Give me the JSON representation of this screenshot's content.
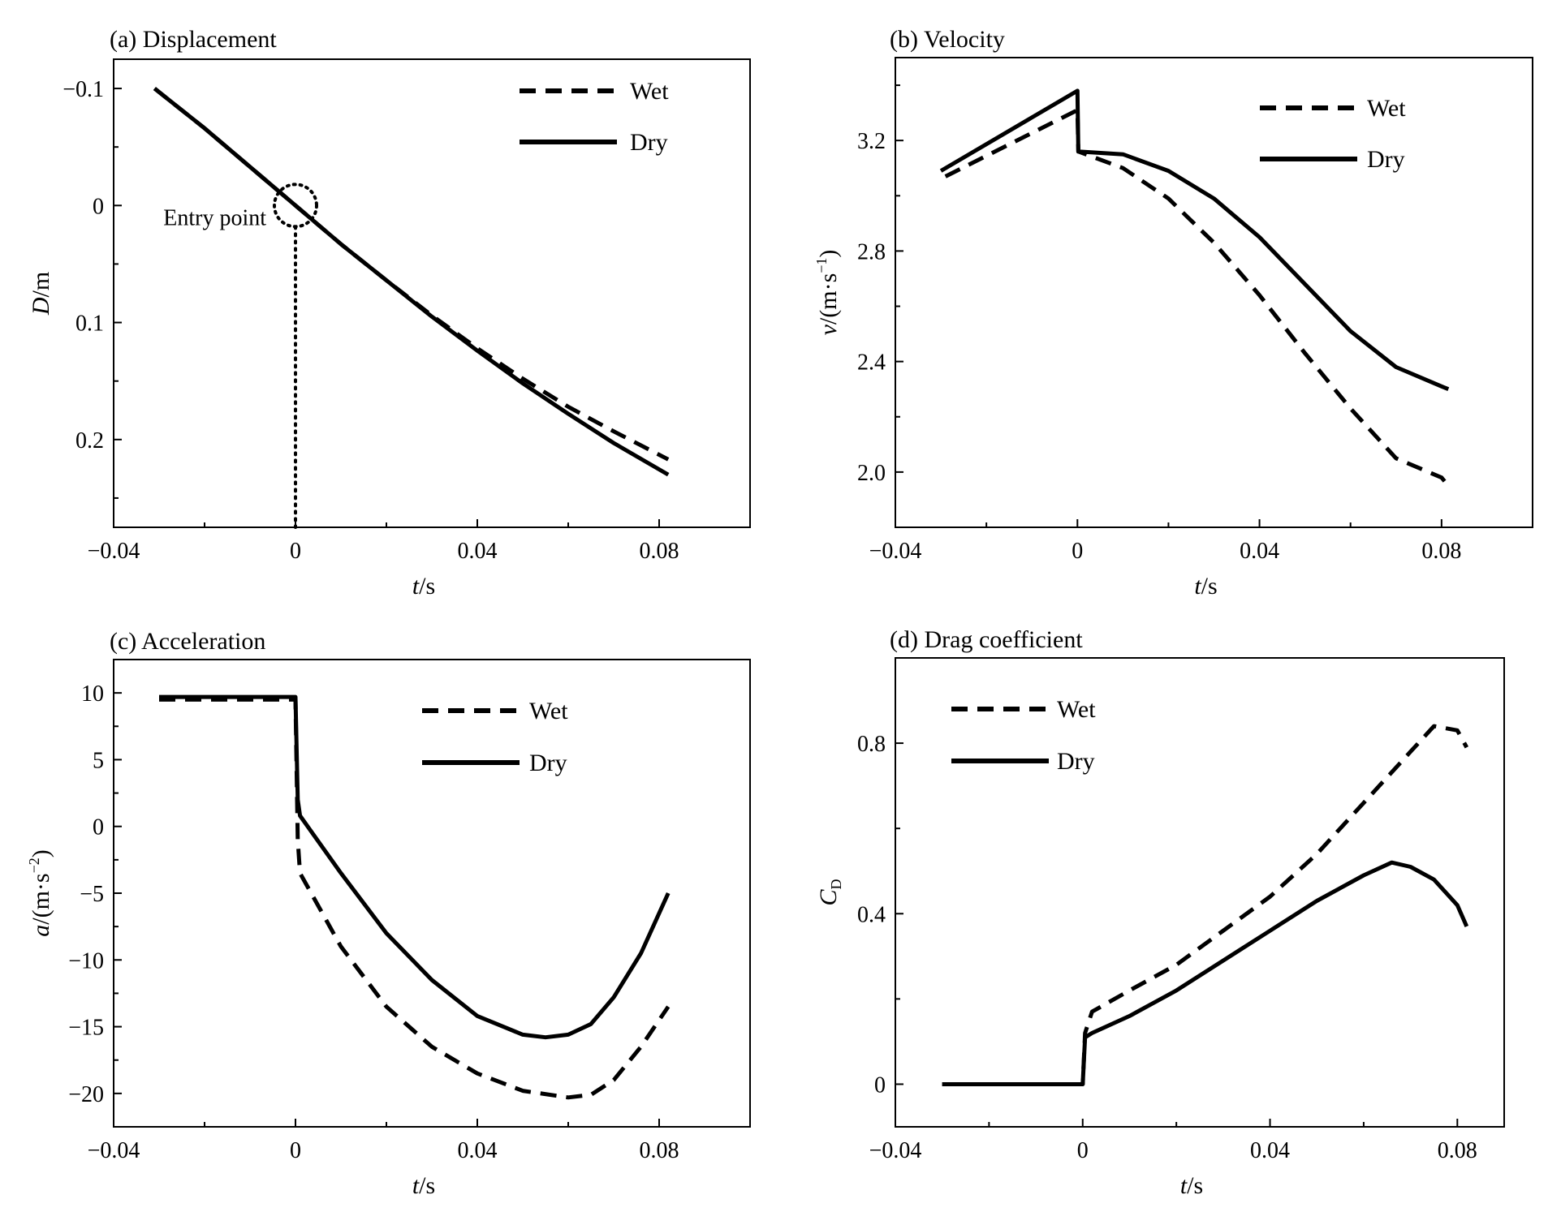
{
  "figure": {
    "line_color": "#000000",
    "background": "#ffffff"
  },
  "chart_data": [
    {
      "id": "a",
      "type": "line",
      "title": "(a) Displacement",
      "xlabel_italic": "t",
      "xlabel_unit": "/s",
      "ylabel_italic": "D",
      "ylabel_unit": "/m",
      "xlim": [
        -0.04,
        0.1
      ],
      "ylim": [
        -0.125,
        0.275
      ],
      "y_inverted": true,
      "xticks": [
        -0.04,
        0,
        0.04,
        0.08
      ],
      "xticklabels": [
        "−0.04",
        "0",
        "0.04",
        "0.08"
      ],
      "yticks": [
        -0.1,
        0,
        0.1,
        0.2
      ],
      "yticklabels": [
        "−0.1",
        "0",
        "0.1",
        "0.2"
      ],
      "grid": false,
      "legend_position": "top-right",
      "series": [
        {
          "name": "Wet",
          "style": "dashed",
          "x": [
            -0.031,
            -0.02,
            -0.01,
            0,
            0.01,
            0.02,
            0.03,
            0.04,
            0.05,
            0.06,
            0.07,
            0.082
          ],
          "y": [
            -0.1,
            -0.066,
            -0.033,
            0,
            0.033,
            0.064,
            0.094,
            0.122,
            0.148,
            0.172,
            0.193,
            0.217
          ]
        },
        {
          "name": "Dry",
          "style": "solid",
          "x": [
            -0.031,
            -0.02,
            -0.01,
            0,
            0.01,
            0.02,
            0.03,
            0.04,
            0.05,
            0.06,
            0.07,
            0.082
          ],
          "y": [
            -0.1,
            -0.066,
            -0.033,
            0,
            0.033,
            0.064,
            0.095,
            0.124,
            0.152,
            0.178,
            0.203,
            0.23
          ]
        }
      ],
      "annotation": {
        "text": "Entry point",
        "x": 0,
        "y": 0
      }
    },
    {
      "id": "b",
      "type": "line",
      "title": "(b) Velocity",
      "xlabel_italic": "t",
      "xlabel_unit": "/s",
      "ylabel_italic": "v",
      "ylabel_unit": "/(m·s",
      "ylabel_sup": "−1",
      "ylabel_end": ")",
      "xlim": [
        -0.04,
        0.1
      ],
      "ylim": [
        1.8,
        3.5
      ],
      "y_inverted": false,
      "xticks": [
        -0.04,
        0,
        0.04,
        0.08
      ],
      "xticklabels": [
        "−0.04",
        "0",
        "0.04",
        "0.08"
      ],
      "yticks": [
        2.0,
        2.4,
        2.8,
        3.2
      ],
      "yticklabels": [
        "2.0",
        "2.4",
        "2.8",
        "3.2"
      ],
      "grid": false,
      "legend_position": "top-right",
      "series": [
        {
          "name": "Wet",
          "style": "dashed",
          "x": [
            -0.029,
            0,
            0.0002,
            0.01,
            0.02,
            0.03,
            0.04,
            0.05,
            0.06,
            0.07,
            0.08,
            0.0815
          ],
          "y": [
            3.07,
            3.31,
            3.16,
            3.1,
            2.99,
            2.83,
            2.64,
            2.43,
            2.23,
            2.05,
            1.98,
            1.95
          ]
        },
        {
          "name": "Dry",
          "style": "solid",
          "x": [
            -0.03,
            0,
            0.0002,
            0.01,
            0.02,
            0.03,
            0.04,
            0.05,
            0.06,
            0.07,
            0.08,
            0.0815
          ],
          "y": [
            3.09,
            3.38,
            3.16,
            3.15,
            3.09,
            2.99,
            2.85,
            2.68,
            2.51,
            2.38,
            2.31,
            2.3
          ]
        }
      ]
    },
    {
      "id": "c",
      "type": "line",
      "title": "(c) Acceleration",
      "xlabel_italic": "t",
      "xlabel_unit": "/s",
      "ylabel_italic": "a",
      "ylabel_unit": "/(m·s",
      "ylabel_sup": "−2",
      "ylabel_end": ")",
      "xlim": [
        -0.04,
        0.1
      ],
      "ylim": [
        -22.5,
        12.5
      ],
      "y_inverted": false,
      "xticks": [
        -0.04,
        0,
        0.04,
        0.08
      ],
      "xticklabels": [
        "−0.04",
        "0",
        "0.04",
        "0.08"
      ],
      "yticks": [
        10,
        5,
        0,
        -5,
        -10,
        -15,
        -20
      ],
      "yticklabels": [
        "10",
        "5",
        "0",
        "−5",
        "−10",
        "−15",
        "−20"
      ],
      "grid": false,
      "legend_position": "top-right",
      "series": [
        {
          "name": "Wet",
          "style": "dashed",
          "x": [
            -0.03,
            0,
            0.0005,
            0.001,
            0.01,
            0.02,
            0.03,
            0.04,
            0.05,
            0.06,
            0.065,
            0.07,
            0.076,
            0.082
          ],
          "y": [
            9.5,
            9.5,
            -1,
            -3.5,
            -9,
            -13.5,
            -16.5,
            -18.5,
            -19.8,
            -20.3,
            -20.1,
            -19,
            -16.5,
            -13.5
          ]
        },
        {
          "name": "Dry",
          "style": "solid",
          "x": [
            -0.03,
            0,
            0.0005,
            0.001,
            0.01,
            0.02,
            0.03,
            0.04,
            0.05,
            0.055,
            0.06,
            0.065,
            0.07,
            0.076,
            0.082
          ],
          "y": [
            9.7,
            9.7,
            2,
            0.8,
            -3.5,
            -8,
            -11.5,
            -14.2,
            -15.6,
            -15.8,
            -15.6,
            -14.8,
            -12.8,
            -9.5,
            -5
          ]
        }
      ]
    },
    {
      "id": "d",
      "type": "line",
      "title": "(d) Drag coefficient",
      "xlabel_italic": "t",
      "xlabel_unit": "/s",
      "ylabel_italic": "C",
      "ylabel_sub": "D",
      "xlim": [
        -0.04,
        0.09
      ],
      "ylim": [
        -0.1,
        1.0
      ],
      "y_inverted": false,
      "xticks": [
        -0.04,
        0,
        0.04,
        0.08
      ],
      "xticklabels": [
        "−0.04",
        "0",
        "0.04",
        "0.08"
      ],
      "yticks": [
        0,
        0.4,
        0.8
      ],
      "yticklabels": [
        "0",
        "0.4",
        "0.8"
      ],
      "grid": false,
      "legend_position": "top-left",
      "series": [
        {
          "name": "Wet",
          "style": "dashed",
          "x": [
            -0.03,
            0,
            0.0005,
            0.002,
            0.01,
            0.02,
            0.03,
            0.04,
            0.05,
            0.06,
            0.07,
            0.075,
            0.08,
            0.082
          ],
          "y": [
            0,
            0,
            0.12,
            0.17,
            0.22,
            0.28,
            0.36,
            0.44,
            0.54,
            0.66,
            0.78,
            0.84,
            0.83,
            0.79
          ]
        },
        {
          "name": "Dry",
          "style": "solid",
          "x": [
            -0.03,
            0,
            0.0005,
            0.002,
            0.01,
            0.02,
            0.03,
            0.04,
            0.05,
            0.06,
            0.066,
            0.07,
            0.075,
            0.08,
            0.082
          ],
          "y": [
            0,
            0,
            0.11,
            0.12,
            0.16,
            0.22,
            0.29,
            0.36,
            0.43,
            0.49,
            0.52,
            0.51,
            0.48,
            0.42,
            0.37
          ]
        }
      ]
    }
  ]
}
